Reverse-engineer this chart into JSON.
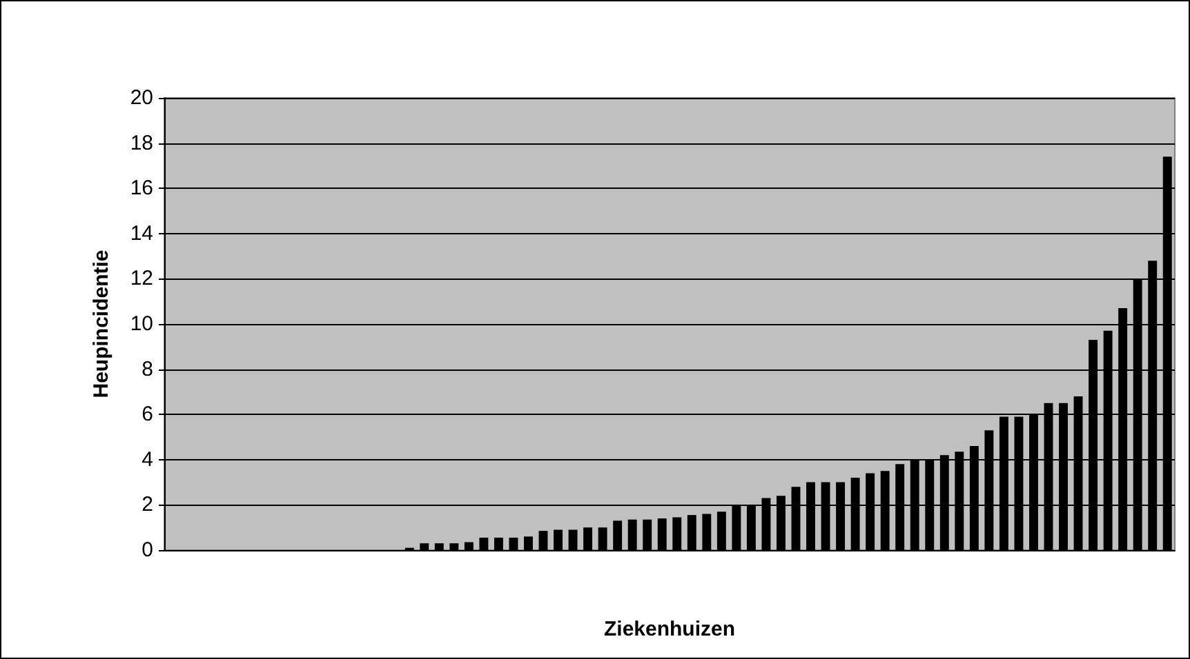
{
  "chart_data": {
    "type": "bar",
    "xlabel": "Ziekenhuizen",
    "ylabel": "Heupincidentie",
    "categories": [
      null,
      null,
      null,
      null,
      null,
      null,
      null,
      null,
      null,
      null,
      null,
      null,
      null,
      null,
      null,
      null,
      null,
      null,
      null,
      null,
      null,
      null,
      null,
      null,
      null,
      null,
      null,
      null,
      null,
      null,
      null,
      null,
      null,
      null,
      null,
      null,
      null,
      null,
      null,
      null,
      null,
      null,
      null,
      null,
      null,
      null,
      null,
      null,
      null,
      null,
      null,
      null,
      null,
      null,
      null,
      null,
      null,
      null,
      null,
      null,
      null,
      null,
      null,
      null,
      null,
      null,
      null,
      null
    ],
    "values": [
      0,
      0,
      0,
      0,
      0,
      0,
      0,
      0,
      0,
      0,
      0,
      0,
      0,
      0,
      0,
      0,
      0.1,
      0.3,
      0.3,
      0.3,
      0.35,
      0.55,
      0.55,
      0.55,
      0.6,
      0.85,
      0.9,
      0.9,
      1.0,
      1.0,
      1.3,
      1.35,
      1.35,
      1.4,
      1.45,
      1.55,
      1.6,
      1.7,
      2.0,
      2.0,
      2.3,
      2.4,
      2.8,
      3.0,
      3.0,
      3.0,
      3.2,
      3.4,
      3.5,
      3.8,
      4.0,
      4.0,
      4.2,
      4.35,
      4.6,
      5.3,
      5.9,
      5.9,
      6.0,
      6.5,
      6.5,
      6.8,
      9.3,
      9.7,
      10.7,
      12.0,
      12.8,
      17.4
    ],
    "color": "#000000",
    "ylim": [
      0,
      20
    ],
    "yticks": [
      0,
      2,
      4,
      6,
      8,
      10,
      12,
      14,
      16,
      18,
      20
    ],
    "grid": "y"
  }
}
